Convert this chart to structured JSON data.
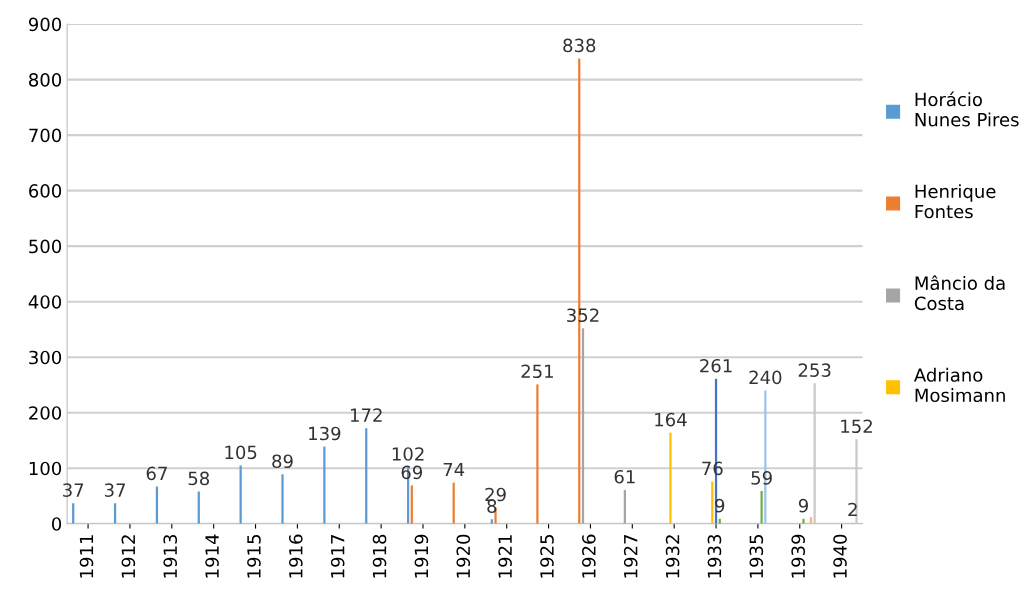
{
  "chart_data": {
    "type": "bar",
    "categories": [
      "1911",
      "1912",
      "1913",
      "1914",
      "1915",
      "1916",
      "1917",
      "1918",
      "1919",
      "1920",
      "1921",
      "1925",
      "1926",
      "1927",
      "1932",
      "1933",
      "1935",
      "1939",
      "1940"
    ],
    "series": [
      {
        "name": "Horácio Nunes Pires",
        "color": "#5b9bd5",
        "values": [
          37,
          37,
          67,
          58,
          105,
          89,
          139,
          172,
          102,
          null,
          8,
          null,
          null,
          null,
          null,
          null,
          null,
          null,
          null
        ],
        "value_labels": [
          "37",
          "37",
          "67",
          "58",
          "105",
          "89",
          "139",
          "172",
          "102",
          null,
          "8",
          null,
          null,
          null,
          null,
          null,
          null,
          null,
          null
        ]
      },
      {
        "name": "Henrique Fontes",
        "color": "#ed7d31",
        "values": [
          null,
          null,
          null,
          null,
          null,
          null,
          null,
          null,
          69,
          74,
          29,
          251,
          838,
          null,
          null,
          null,
          null,
          null,
          null
        ],
        "value_labels": [
          null,
          null,
          null,
          null,
          null,
          null,
          null,
          null,
          "69",
          "74",
          "29",
          "251",
          "838",
          null,
          null,
          null,
          null,
          null,
          null
        ]
      },
      {
        "name": "Mâncio da Costa",
        "color": "#a5a5a5",
        "values": [
          null,
          null,
          null,
          null,
          null,
          null,
          null,
          null,
          null,
          null,
          null,
          null,
          352,
          61,
          null,
          null,
          null,
          null,
          null
        ],
        "value_labels": [
          null,
          null,
          null,
          null,
          null,
          null,
          null,
          null,
          null,
          null,
          null,
          null,
          "352",
          "61",
          null,
          null,
          null,
          null,
          null
        ]
      },
      {
        "name": "Adriano Mosimann",
        "color": "#ffc000",
        "values": [
          null,
          null,
          null,
          null,
          null,
          null,
          null,
          null,
          null,
          null,
          null,
          null,
          null,
          null,
          164,
          76,
          null,
          null,
          null
        ],
        "value_labels": [
          null,
          null,
          null,
          null,
          null,
          null,
          null,
          null,
          null,
          null,
          null,
          null,
          null,
          null,
          "164",
          "76",
          null,
          null,
          null
        ]
      },
      {
        "color": "#4472c4",
        "values": [
          null,
          null,
          null,
          null,
          null,
          null,
          null,
          null,
          null,
          null,
          null,
          null,
          null,
          null,
          null,
          261,
          null,
          null,
          null
        ],
        "value_labels": [
          null,
          null,
          null,
          null,
          null,
          null,
          null,
          null,
          null,
          null,
          null,
          null,
          null,
          null,
          null,
          "261",
          null,
          null,
          null
        ]
      },
      {
        "color": "#70ad47",
        "values": [
          null,
          null,
          null,
          null,
          null,
          null,
          null,
          null,
          null,
          null,
          null,
          null,
          null,
          null,
          null,
          9,
          59,
          9,
          null
        ],
        "value_labels": [
          null,
          null,
          null,
          null,
          null,
          null,
          null,
          null,
          null,
          null,
          null,
          null,
          null,
          null,
          null,
          "9",
          "59",
          "9",
          null
        ]
      },
      {
        "color": "#9dc3e6",
        "values": [
          null,
          null,
          null,
          null,
          null,
          null,
          null,
          null,
          null,
          null,
          null,
          null,
          null,
          null,
          null,
          null,
          240,
          null,
          null
        ],
        "value_labels": [
          null,
          null,
          null,
          null,
          null,
          null,
          null,
          null,
          null,
          null,
          null,
          null,
          null,
          null,
          null,
          null,
          "240",
          null,
          null
        ]
      },
      {
        "color": "#f4b183",
        "values": [
          null,
          null,
          null,
          null,
          null,
          null,
          null,
          null,
          null,
          null,
          null,
          null,
          null,
          null,
          null,
          null,
          null,
          12,
          2
        ],
        "value_labels": [
          null,
          null,
          null,
          null,
          null,
          null,
          null,
          null,
          null,
          null,
          null,
          null,
          null,
          null,
          null,
          null,
          null,
          null,
          "2"
        ]
      },
      {
        "color": "#c9c9c9",
        "values": [
          null,
          null,
          null,
          null,
          null,
          null,
          null,
          null,
          null,
          null,
          null,
          null,
          null,
          null,
          null,
          null,
          null,
          253,
          152
        ],
        "value_labels": [
          null,
          null,
          null,
          null,
          null,
          null,
          null,
          null,
          null,
          null,
          null,
          null,
          null,
          null,
          null,
          null,
          null,
          "253",
          "152"
        ]
      }
    ],
    "ylim": [
      0,
      900
    ],
    "yticks": [
      0,
      100,
      200,
      300,
      400,
      500,
      600,
      700,
      800,
      900
    ],
    "grid": "y",
    "legend": "right"
  }
}
